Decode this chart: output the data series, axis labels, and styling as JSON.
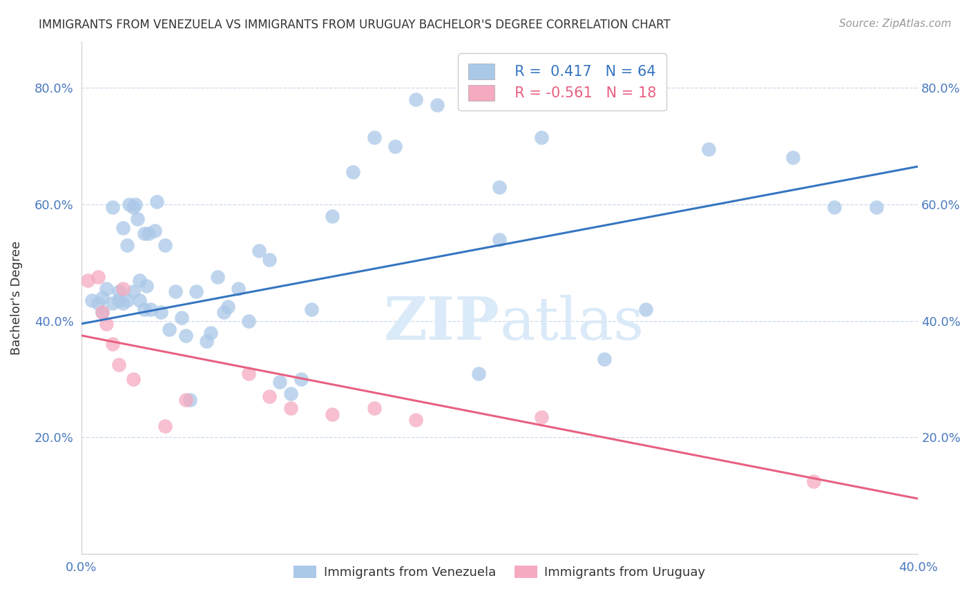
{
  "title": "IMMIGRANTS FROM VENEZUELA VS IMMIGRANTS FROM URUGUAY BACHELOR'S DEGREE CORRELATION CHART",
  "source": "Source: ZipAtlas.com",
  "ylabel": "Bachelor's Degree",
  "xlim": [
    0.0,
    0.4
  ],
  "ylim": [
    0.0,
    0.88
  ],
  "xtick_labels": [
    "0.0%",
    "",
    "",
    "",
    "40.0%"
  ],
  "xtick_values": [
    0.0,
    0.1,
    0.2,
    0.3,
    0.4
  ],
  "ytick_labels": [
    "20.0%",
    "40.0%",
    "60.0%",
    "80.0%"
  ],
  "ytick_values": [
    0.2,
    0.4,
    0.6,
    0.8
  ],
  "legend_blue_label": "Immigrants from Venezuela",
  "legend_pink_label": "Immigrants from Uruguay",
  "R_blue": 0.417,
  "N_blue": 64,
  "R_pink": -0.561,
  "N_pink": 18,
  "blue_color": "#aac8e8",
  "pink_color": "#f5aabf",
  "blue_line_color": "#3575c0",
  "pink_line_color": "#e86080",
  "background_color": "#ffffff",
  "grid_color": "#ccd8ea",
  "title_color": "#333333",
  "tick_color": "#4a7abf",
  "watermark_color": "#daeaf8",
  "blue_scatter_x": [
    0.005,
    0.008,
    0.01,
    0.01,
    0.012,
    0.015,
    0.015,
    0.018,
    0.018,
    0.02,
    0.02,
    0.022,
    0.022,
    0.023,
    0.025,
    0.025,
    0.026,
    0.027,
    0.028,
    0.028,
    0.03,
    0.03,
    0.031,
    0.032,
    0.033,
    0.035,
    0.036,
    0.038,
    0.04,
    0.042,
    0.045,
    0.048,
    0.05,
    0.052,
    0.055,
    0.06,
    0.062,
    0.065,
    0.068,
    0.07,
    0.075,
    0.08,
    0.085,
    0.09,
    0.095,
    0.1,
    0.105,
    0.11,
    0.12,
    0.13,
    0.14,
    0.15,
    0.16,
    0.17,
    0.19,
    0.2,
    0.22,
    0.25,
    0.27,
    0.3,
    0.34,
    0.36,
    0.38,
    0.2
  ],
  "blue_scatter_y": [
    0.435,
    0.43,
    0.44,
    0.415,
    0.455,
    0.43,
    0.595,
    0.435,
    0.45,
    0.43,
    0.56,
    0.435,
    0.53,
    0.6,
    0.45,
    0.595,
    0.6,
    0.575,
    0.435,
    0.47,
    0.42,
    0.55,
    0.46,
    0.55,
    0.42,
    0.555,
    0.605,
    0.415,
    0.53,
    0.385,
    0.45,
    0.405,
    0.375,
    0.265,
    0.45,
    0.365,
    0.38,
    0.475,
    0.415,
    0.425,
    0.455,
    0.4,
    0.52,
    0.505,
    0.295,
    0.275,
    0.3,
    0.42,
    0.58,
    0.655,
    0.715,
    0.7,
    0.78,
    0.77,
    0.31,
    0.63,
    0.715,
    0.335,
    0.42,
    0.695,
    0.68,
    0.595,
    0.595,
    0.54
  ],
  "pink_scatter_x": [
    0.003,
    0.008,
    0.01,
    0.012,
    0.015,
    0.018,
    0.02,
    0.025,
    0.04,
    0.05,
    0.08,
    0.09,
    0.1,
    0.12,
    0.14,
    0.16,
    0.22,
    0.35
  ],
  "pink_scatter_y": [
    0.47,
    0.475,
    0.415,
    0.395,
    0.36,
    0.325,
    0.455,
    0.3,
    0.22,
    0.265,
    0.31,
    0.27,
    0.25,
    0.24,
    0.25,
    0.23,
    0.235,
    0.125
  ],
  "blue_trend_x": [
    0.0,
    0.4
  ],
  "blue_trend_y": [
    0.395,
    0.665
  ],
  "pink_trend_x": [
    0.0,
    0.4
  ],
  "pink_trend_y": [
    0.375,
    0.095
  ]
}
